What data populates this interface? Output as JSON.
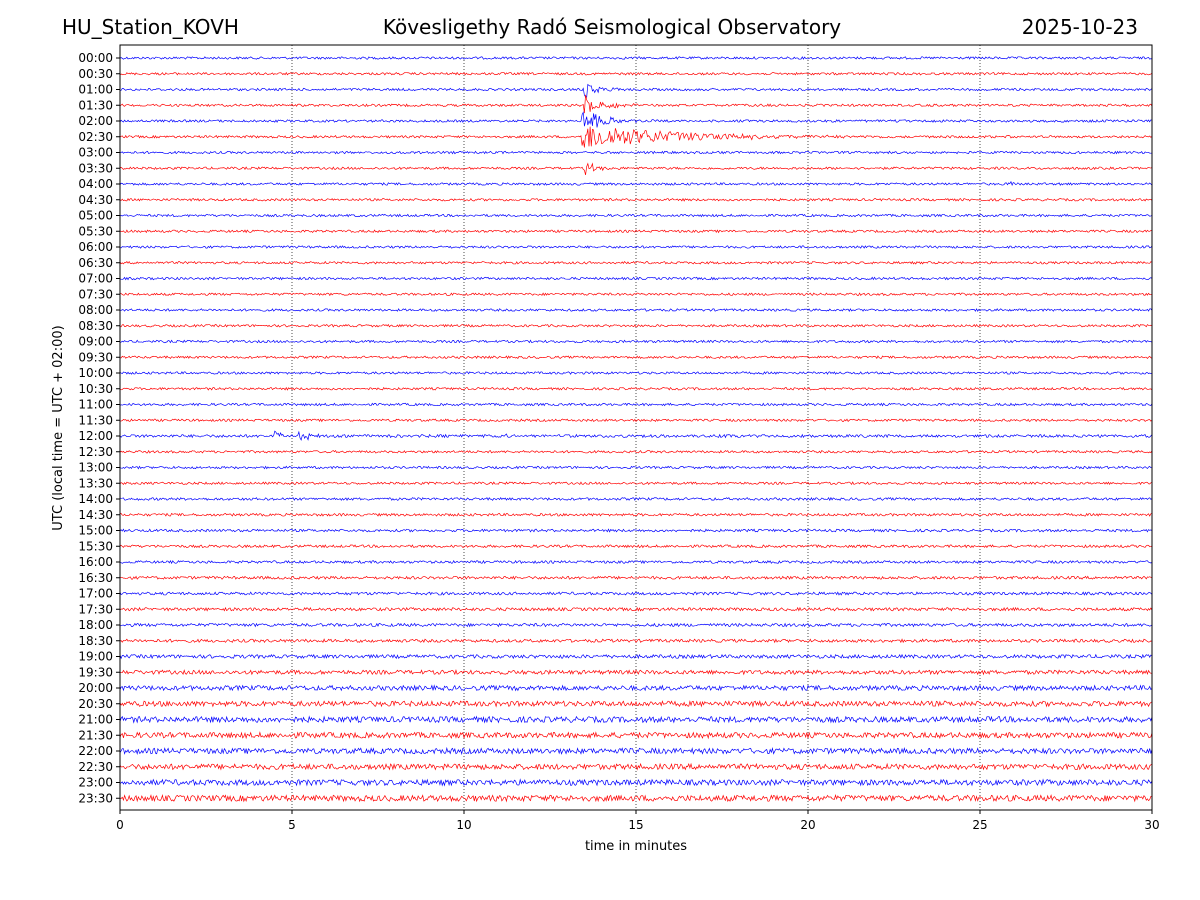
{
  "header": {
    "station": "HU_Station_KOVH",
    "title": "Kövesligethy Radó Seismological Observatory",
    "date": "2025-10-23"
  },
  "chart_data": {
    "type": "line",
    "subtype": "helicorder",
    "title": "Kövesligethy Radó Seismological Observatory",
    "xlabel": "time in minutes",
    "ylabel": "UTC (local time = UTC + 02:00)",
    "xlim": [
      0,
      30
    ],
    "x_ticks": [
      0,
      5,
      10,
      15,
      20,
      25,
      30
    ],
    "grid": "vertical dotted at x ticks",
    "row_colors": [
      "#0000ff",
      "#ff0000"
    ],
    "rows": [
      {
        "label": "00:00",
        "noise": 1.0
      },
      {
        "label": "00:30",
        "noise": 1.0
      },
      {
        "label": "01:00",
        "noise": 1.0,
        "events": [
          {
            "t": 13.5,
            "amp": 10,
            "decay": 0.4
          }
        ]
      },
      {
        "label": "01:30",
        "noise": 1.0,
        "events": [
          {
            "t": 13.5,
            "amp": 12,
            "decay": 0.5
          }
        ]
      },
      {
        "label": "02:00",
        "noise": 1.0,
        "events": [
          {
            "t": 13.4,
            "amp": 14,
            "decay": 0.6
          }
        ]
      },
      {
        "label": "02:30",
        "noise": 1.0,
        "events": [
          {
            "t": 13.4,
            "amp": 14,
            "decay": 2.5
          }
        ]
      },
      {
        "label": "03:00",
        "noise": 1.0,
        "events": [
          {
            "t": 5.0,
            "amp": 2,
            "decay": 0.1
          }
        ]
      },
      {
        "label": "03:30",
        "noise": 1.0,
        "events": [
          {
            "t": 13.5,
            "amp": 8,
            "decay": 0.3
          }
        ]
      },
      {
        "label": "04:00",
        "noise": 1.0,
        "events": [
          {
            "t": 25.9,
            "amp": 5,
            "decay": 0.05
          }
        ]
      },
      {
        "label": "04:30",
        "noise": 1.0
      },
      {
        "label": "05:00",
        "noise": 1.0
      },
      {
        "label": "05:30",
        "noise": 1.0
      },
      {
        "label": "06:00",
        "noise": 1.0
      },
      {
        "label": "06:30",
        "noise": 1.0
      },
      {
        "label": "07:00",
        "noise": 1.0
      },
      {
        "label": "07:30",
        "noise": 1.0
      },
      {
        "label": "08:00",
        "noise": 1.0
      },
      {
        "label": "08:30",
        "noise": 1.0
      },
      {
        "label": "09:00",
        "noise": 1.0
      },
      {
        "label": "09:30",
        "noise": 1.0
      },
      {
        "label": "10:00",
        "noise": 1.0
      },
      {
        "label": "10:30",
        "noise": 1.0
      },
      {
        "label": "11:00",
        "noise": 1.0
      },
      {
        "label": "11:30",
        "noise": 1.0
      },
      {
        "label": "12:00",
        "noise": 1.2,
        "events": [
          {
            "t": 4.5,
            "amp": 6,
            "decay": 0.15
          },
          {
            "t": 5.2,
            "amp": 7,
            "decay": 0.3
          },
          {
            "t": 11.2,
            "amp": 2,
            "decay": 0.1
          }
        ]
      },
      {
        "label": "12:30",
        "noise": 1.0
      },
      {
        "label": "13:00",
        "noise": 1.0
      },
      {
        "label": "13:30",
        "noise": 1.0
      },
      {
        "label": "14:00",
        "noise": 1.1
      },
      {
        "label": "14:30",
        "noise": 1.1
      },
      {
        "label": "15:00",
        "noise": 1.1
      },
      {
        "label": "15:30",
        "noise": 1.1
      },
      {
        "label": "16:00",
        "noise": 1.1
      },
      {
        "label": "16:30",
        "noise": 1.2
      },
      {
        "label": "17:00",
        "noise": 1.2
      },
      {
        "label": "17:30",
        "noise": 1.3
      },
      {
        "label": "18:00",
        "noise": 1.3
      },
      {
        "label": "18:30",
        "noise": 1.3
      },
      {
        "label": "19:00",
        "noise": 1.5
      },
      {
        "label": "19:30",
        "noise": 1.7
      },
      {
        "label": "20:00",
        "noise": 2.0
      },
      {
        "label": "20:30",
        "noise": 2.2
      },
      {
        "label": "21:00",
        "noise": 2.4
      },
      {
        "label": "21:30",
        "noise": 2.3
      },
      {
        "label": "22:00",
        "noise": 2.3
      },
      {
        "label": "22:30",
        "noise": 2.3
      },
      {
        "label": "23:00",
        "noise": 2.4
      },
      {
        "label": "23:30",
        "noise": 2.5
      }
    ]
  }
}
